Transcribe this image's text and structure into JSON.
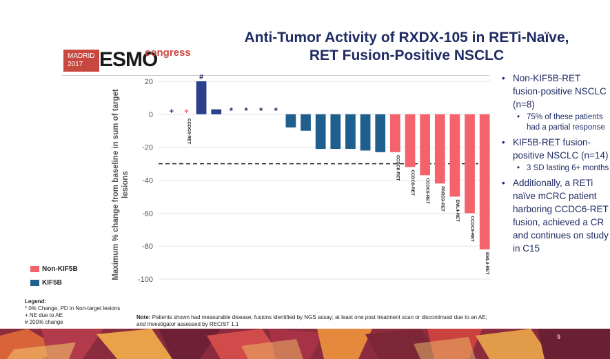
{
  "slide": {
    "title_line1": "Anti-Tumor Activity of RXDX-105 in RETi-Naïve,",
    "title_line2": "RET Fusion-Positive NSCLC",
    "logo": {
      "city_line1": "MADRID",
      "city_line2": "2017",
      "brand": "ESMO",
      "suffix": "congress"
    },
    "page_number": "9",
    "colors": {
      "title": "#1f2b63",
      "non_kif5b": "#f4636b",
      "kif5b": "#1e5f8e",
      "first_bar": "#2b3f8a"
    }
  },
  "bullets": [
    {
      "level": 1,
      "text": "Non-KIF5B-RET fusion-positive NSCLC (n=8)"
    },
    {
      "level": 2,
      "text": "75% of these patients had a partial response"
    },
    {
      "level": 1,
      "text": "KIF5B-RET fusion-positive NSCLC (n=14)"
    },
    {
      "level": 2,
      "text": "3 SD lasting 6+ months"
    },
    {
      "level": 1,
      "text": "Additionally, a RETi naïve mCRC patient harboring CCDC6-RET fusion, achieved a CR and continues on study in C15"
    }
  ],
  "legend_notes": {
    "head": "Legend:",
    "line1": "* 0% Change, PD in Non-target lesions",
    "line2": "+ NE due to AE",
    "line3": "# 200% change"
  },
  "footnote": {
    "label": "Note:",
    "text": "Patients shown had measurable disease; fusions identified by NGS assay; at least one post treatment scan or discontinued due to an AE; and Investigator assessed by RECIST 1.1"
  },
  "chart_data": {
    "type": "bar",
    "ylabel": "Maximum % change from baseline in sum of target lesions",
    "ylim": [
      -100,
      20
    ],
    "yticks": [
      20,
      0,
      -20,
      -40,
      -60,
      -80,
      -100
    ],
    "grid": true,
    "threshold_line": -30,
    "legend": [
      {
        "name": "Non-KIF5B",
        "color": "#f4636b"
      },
      {
        "name": "KIF5B",
        "color": "#1e5f8e"
      }
    ],
    "bars": [
      {
        "value": 0,
        "group": "KIF5B",
        "marker": "+",
        "label": ""
      },
      {
        "value": 0,
        "group": "Non-KIF5B",
        "marker": "+",
        "label": "CCDC6-RET"
      },
      {
        "value": 20,
        "group": "KIF5B",
        "marker": "#",
        "label": "",
        "color": "#2b3f8a"
      },
      {
        "value": 3,
        "group": "KIF5B",
        "marker": "",
        "label": "",
        "color": "#2b3f8a"
      },
      {
        "value": 0,
        "group": "KIF5B",
        "marker": "*",
        "label": ""
      },
      {
        "value": 0,
        "group": "KIF5B",
        "marker": "*",
        "label": ""
      },
      {
        "value": 0,
        "group": "KIF5B",
        "marker": "*",
        "label": ""
      },
      {
        "value": 0,
        "group": "KIF5B",
        "marker": "*",
        "label": ""
      },
      {
        "value": -8,
        "group": "KIF5B",
        "marker": "",
        "label": ""
      },
      {
        "value": -10,
        "group": "KIF5B",
        "marker": "",
        "label": ""
      },
      {
        "value": -21,
        "group": "KIF5B",
        "marker": "",
        "label": ""
      },
      {
        "value": -21,
        "group": "KIF5B",
        "marker": "",
        "label": ""
      },
      {
        "value": -21,
        "group": "KIF5B",
        "marker": "",
        "label": ""
      },
      {
        "value": -22,
        "group": "KIF5B",
        "marker": "",
        "label": ""
      },
      {
        "value": -23,
        "group": "KIF5B",
        "marker": "",
        "label": ""
      },
      {
        "value": -23,
        "group": "Non-KIF5B",
        "marker": "",
        "label": "CCDC6-RET"
      },
      {
        "value": -32,
        "group": "Non-KIF5B",
        "marker": "",
        "label": "CCDC6-RET"
      },
      {
        "value": -37,
        "group": "Non-KIF5B",
        "marker": "",
        "label": "CCDC6-RET"
      },
      {
        "value": -42,
        "group": "Non-KIF5B",
        "marker": "",
        "label": "PARD3-RET"
      },
      {
        "value": -50,
        "group": "Non-KIF5B",
        "marker": "",
        "label": "EML4-RET"
      },
      {
        "value": -60,
        "group": "Non-KIF5B",
        "marker": "",
        "label": "CCDC6-RET"
      },
      {
        "value": -82,
        "group": "Non-KIF5B",
        "marker": "",
        "label": "EML4-RET"
      }
    ]
  }
}
